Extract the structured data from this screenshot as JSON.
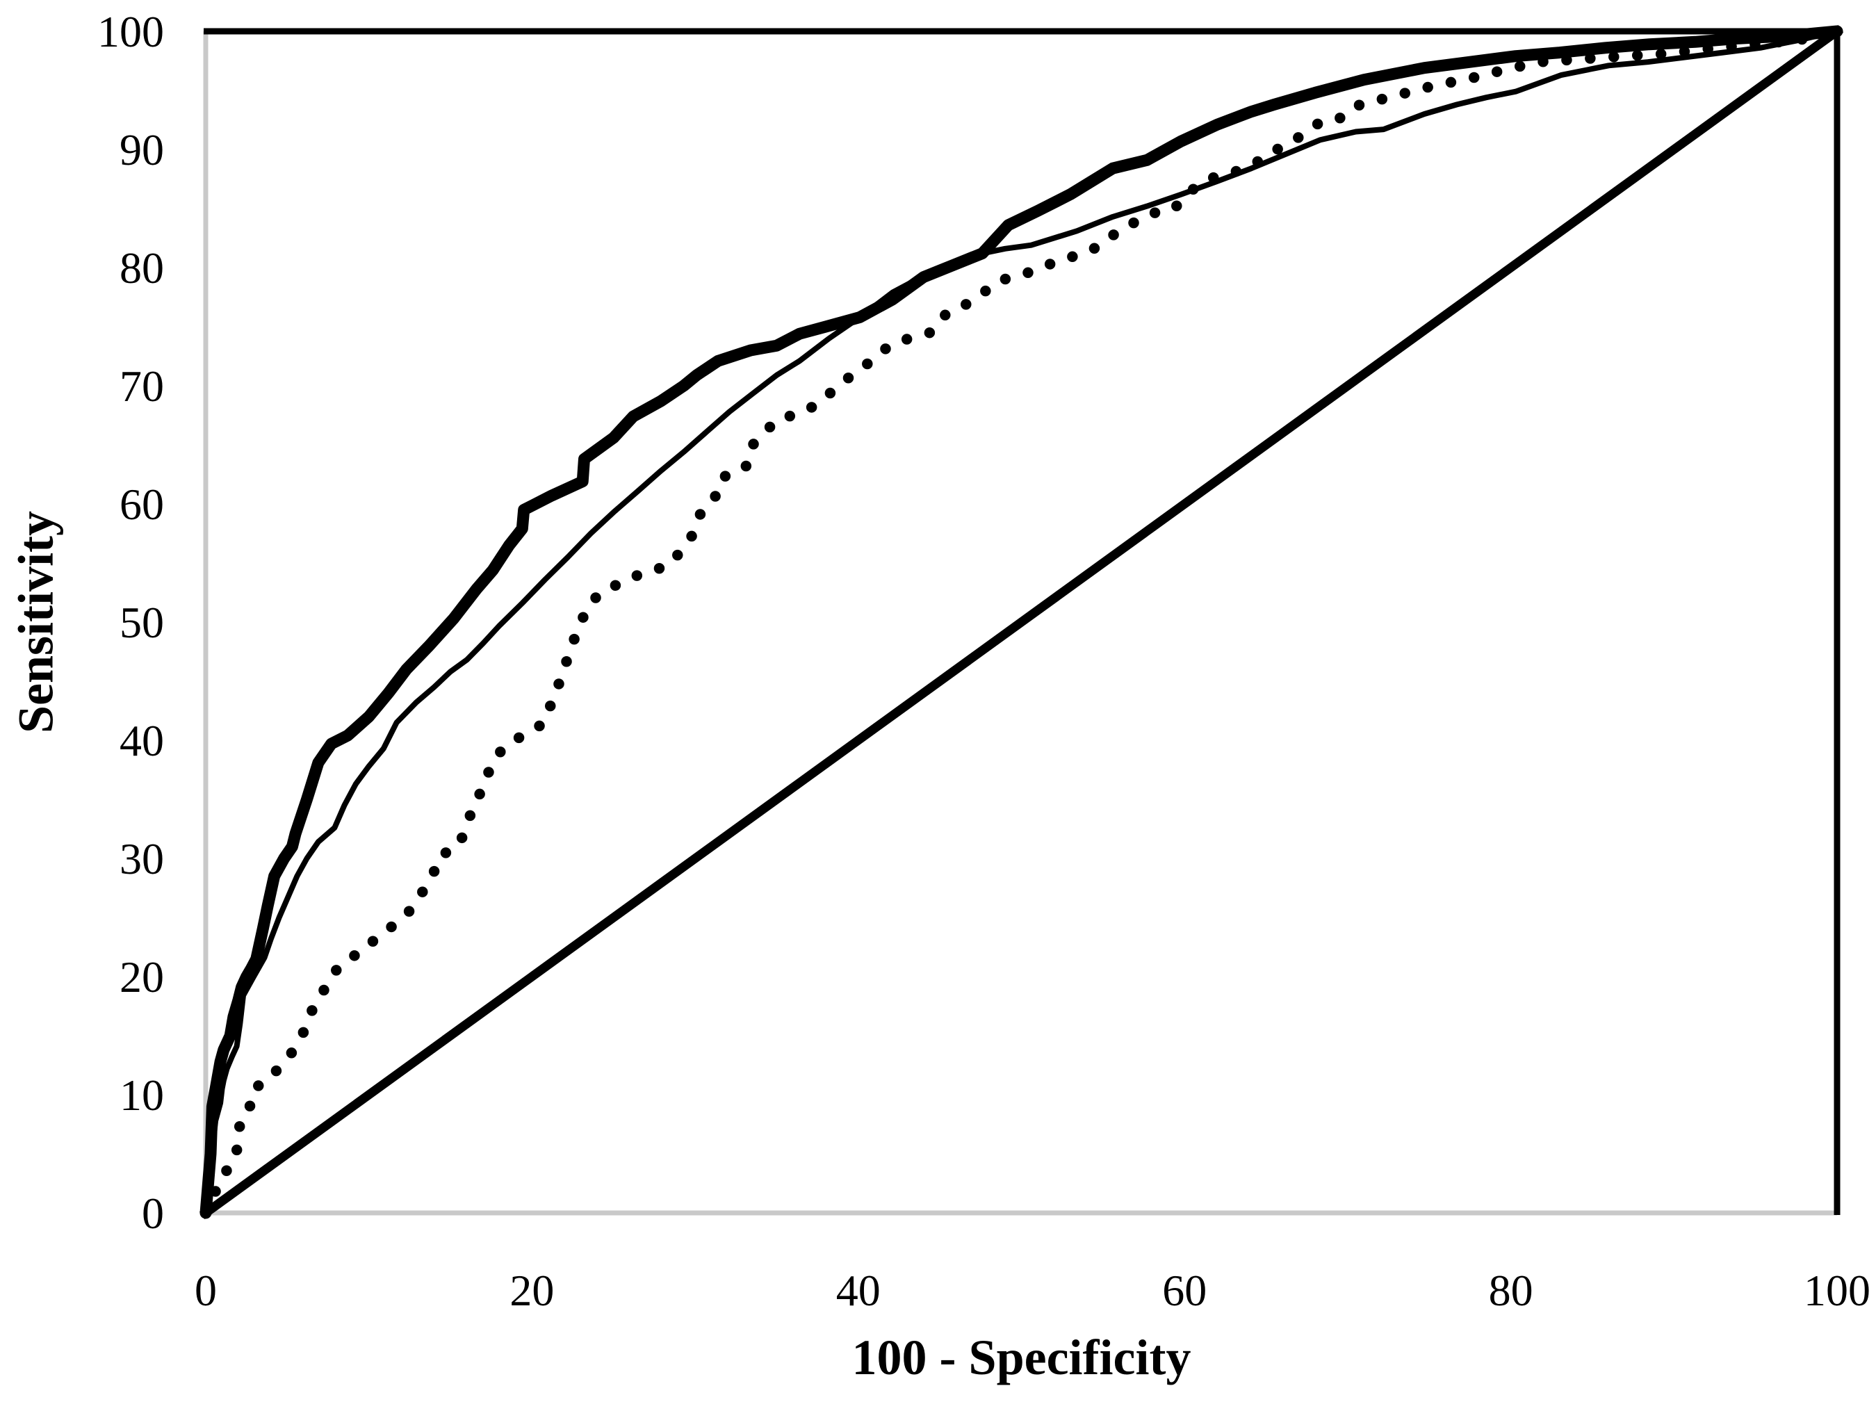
{
  "figure": {
    "background_color": "#ffffff",
    "axis_line_color": "#c9c9c9",
    "frame_line_color": "#000000",
    "curve_color": "#000000",
    "x_axis": {
      "title": "100 - Specificity",
      "ticks": [
        0,
        20,
        40,
        60,
        80,
        100
      ],
      "range": [
        0,
        100
      ]
    },
    "y_axis": {
      "title": "Sensitivity",
      "ticks": [
        0,
        10,
        20,
        30,
        40,
        50,
        60,
        70,
        80,
        90,
        100
      ],
      "range": [
        0,
        100
      ]
    }
  },
  "chart_data": {
    "type": "line",
    "title": "",
    "xlabel": "100 - Specificity",
    "ylabel": "Sensitivity",
    "xlim": [
      0,
      100
    ],
    "ylim": [
      0,
      100
    ],
    "grid": false,
    "legend_position": "none",
    "description": "ROC curves: three empirical ROC curves (thick solid, thin solid, dotted) plus a no-discrimination diagonal reference line",
    "series": [
      {
        "name": "roc-curve-thick-solid",
        "line_style": "solid-thick",
        "points": [
          [
            0,
            0
          ],
          [
            0.3,
            5
          ],
          [
            0.4,
            9
          ],
          [
            0.6,
            10.5
          ],
          [
            0.9,
            12.8
          ],
          [
            1.1,
            13.8
          ],
          [
            1.5,
            15
          ],
          [
            1.7,
            16.6
          ],
          [
            2.0,
            18
          ],
          [
            2.2,
            19.1
          ],
          [
            2.5,
            20
          ],
          [
            2.8,
            20.7
          ],
          [
            3.1,
            21.5
          ],
          [
            3.5,
            24
          ],
          [
            3.8,
            26
          ],
          [
            4.2,
            28.5
          ],
          [
            4.8,
            30
          ],
          [
            5.3,
            31
          ],
          [
            5.5,
            32.1
          ],
          [
            6.2,
            35
          ],
          [
            6.9,
            38.1
          ],
          [
            7.7,
            39.7
          ],
          [
            8.7,
            40.4
          ],
          [
            10,
            42
          ],
          [
            11.2,
            44
          ],
          [
            12.3,
            46
          ],
          [
            13.7,
            48
          ],
          [
            15.2,
            50.3
          ],
          [
            16.6,
            52.8
          ],
          [
            17.6,
            54.4
          ],
          [
            18.6,
            56.5
          ],
          [
            19.4,
            57.9
          ],
          [
            19.5,
            59.5
          ],
          [
            21.2,
            60.7
          ],
          [
            23.1,
            61.9
          ],
          [
            23.2,
            63.8
          ],
          [
            24.2,
            64.8
          ],
          [
            25,
            65.6
          ],
          [
            26.2,
            67.4
          ],
          [
            27.9,
            68.7
          ],
          [
            29.3,
            70
          ],
          [
            30.1,
            70.9
          ],
          [
            31.4,
            72.1
          ],
          [
            33.4,
            73
          ],
          [
            35,
            73.4
          ],
          [
            36.4,
            74.4
          ],
          [
            38,
            75
          ],
          [
            40.1,
            75.8
          ],
          [
            42.1,
            77.3
          ],
          [
            44,
            79.2
          ],
          [
            45.8,
            80.2
          ],
          [
            47.6,
            81.2
          ],
          [
            49.2,
            83.6
          ],
          [
            51,
            84.8
          ],
          [
            53,
            86.2
          ],
          [
            55.6,
            88.4
          ],
          [
            57.7,
            89.1
          ],
          [
            59.8,
            90.7
          ],
          [
            62,
            92.1
          ],
          [
            64.1,
            93.2
          ],
          [
            65.5,
            93.8
          ],
          [
            68,
            94.8
          ],
          [
            71,
            95.9
          ],
          [
            74.7,
            96.9
          ],
          [
            77.5,
            97.4
          ],
          [
            80.3,
            97.9
          ],
          [
            83,
            98.2
          ],
          [
            85.8,
            98.6
          ],
          [
            88.5,
            98.9
          ],
          [
            91.3,
            99.1
          ],
          [
            94,
            99.4
          ],
          [
            96.9,
            99.6
          ],
          [
            100,
            100
          ]
        ]
      },
      {
        "name": "roc-curve-thin-solid",
        "line_style": "solid-thin",
        "points": [
          [
            0,
            0
          ],
          [
            0.3,
            4
          ],
          [
            0.6,
            7.8
          ],
          [
            0.9,
            9.3
          ],
          [
            1.0,
            10.5
          ],
          [
            1.1,
            11.2
          ],
          [
            1.3,
            12.2
          ],
          [
            1.6,
            13.2
          ],
          [
            1.9,
            14.1
          ],
          [
            2.1,
            16
          ],
          [
            2.3,
            18.4
          ],
          [
            2.9,
            19.9
          ],
          [
            3.6,
            21.6
          ],
          [
            4.0,
            23.2
          ],
          [
            4.5,
            25
          ],
          [
            5.0,
            26.6
          ],
          [
            5.6,
            28.5
          ],
          [
            6.2,
            30
          ],
          [
            6.9,
            31.4
          ],
          [
            7.9,
            32.6
          ],
          [
            8.5,
            34.5
          ],
          [
            9.2,
            36.3
          ],
          [
            10,
            37.8
          ],
          [
            10.9,
            39.3
          ],
          [
            11.7,
            41.5
          ],
          [
            12.9,
            43.2
          ],
          [
            14,
            44.5
          ],
          [
            15,
            45.8
          ],
          [
            16,
            46.8
          ],
          [
            17,
            48.2
          ],
          [
            18,
            49.7
          ],
          [
            19.4,
            51.6
          ],
          [
            20.8,
            53.6
          ],
          [
            22.2,
            55.5
          ],
          [
            23.6,
            57.5
          ],
          [
            25,
            59.3
          ],
          [
            26.5,
            61.1
          ],
          [
            27.9,
            62.8
          ],
          [
            29.3,
            64.4
          ],
          [
            30.7,
            66.1
          ],
          [
            32.1,
            67.8
          ],
          [
            33.5,
            69.3
          ],
          [
            35,
            70.9
          ],
          [
            36.4,
            72.1
          ],
          [
            38.2,
            74
          ],
          [
            40.1,
            75.8
          ],
          [
            42.1,
            77.9
          ],
          [
            44,
            79.3
          ],
          [
            45.8,
            80.4
          ],
          [
            47.6,
            81.2
          ],
          [
            49,
            81.6
          ],
          [
            50.6,
            81.9
          ],
          [
            53.4,
            83.1
          ],
          [
            55.6,
            84.3
          ],
          [
            57.7,
            85.2
          ],
          [
            59.8,
            86.2
          ],
          [
            62,
            87.3
          ],
          [
            64.1,
            88.4
          ],
          [
            66.2,
            89.6
          ],
          [
            68.3,
            90.8
          ],
          [
            70.5,
            91.5
          ],
          [
            72.2,
            91.7
          ],
          [
            74.7,
            93
          ],
          [
            76.7,
            93.8
          ],
          [
            78.5,
            94.4
          ],
          [
            80.3,
            94.9
          ],
          [
            83.1,
            96.3
          ],
          [
            86,
            97.1
          ],
          [
            88.4,
            97.4
          ],
          [
            90.7,
            97.8
          ],
          [
            93,
            98.2
          ],
          [
            95.3,
            98.6
          ],
          [
            97.5,
            99.2
          ],
          [
            100,
            100
          ]
        ]
      },
      {
        "name": "roc-curve-dotted",
        "line_style": "dotted",
        "points": [
          [
            0,
            0
          ],
          [
            0.5,
            1.5
          ],
          [
            1,
            3.1
          ],
          [
            1.7,
            4.3
          ],
          [
            2,
            5.8
          ],
          [
            2.1,
            7.8
          ],
          [
            2.7,
            9
          ],
          [
            2.9,
            10.5
          ],
          [
            3.9,
            11.3
          ],
          [
            4.6,
            12.5
          ],
          [
            5.1,
            13.2
          ],
          [
            5.7,
            14.5
          ],
          [
            6.1,
            15.6
          ],
          [
            6.5,
            17.1
          ],
          [
            7,
            18.2
          ],
          [
            7.7,
            20.1
          ],
          [
            8.6,
            21.4
          ],
          [
            9.7,
            22.2
          ],
          [
            10.6,
            23.5
          ],
          [
            11.7,
            24.5
          ],
          [
            12.6,
            25.7
          ],
          [
            13.3,
            27.2
          ],
          [
            14,
            28.9
          ],
          [
            14.3,
            30.2
          ],
          [
            15.5,
            31
          ],
          [
            16,
            32.8
          ],
          [
            16.4,
            34.4
          ],
          [
            17,
            36
          ],
          [
            17.5,
            37.9
          ],
          [
            18.2,
            39.3
          ],
          [
            19.4,
            40.4
          ],
          [
            20.7,
            41.4
          ],
          [
            21.6,
            44.6
          ],
          [
            22.4,
            47.8
          ],
          [
            22.8,
            49.4
          ],
          [
            23.5,
            51.5
          ],
          [
            24.3,
            52.6
          ],
          [
            25.6,
            53.4
          ],
          [
            27,
            54.3
          ],
          [
            28.3,
            54.7
          ],
          [
            29.2,
            56.1
          ],
          [
            29.9,
            57.5
          ],
          [
            30.3,
            59.1
          ],
          [
            31.2,
            60.5
          ],
          [
            31.6,
            62.2
          ],
          [
            33.1,
            63.1
          ],
          [
            33.4,
            64.8
          ],
          [
            34.2,
            66
          ],
          [
            35.1,
            67.2
          ],
          [
            36.3,
            67.6
          ],
          [
            37.6,
            68.5
          ],
          [
            38.6,
            69.8
          ],
          [
            39.7,
            71
          ],
          [
            40.8,
            72.1
          ],
          [
            41.9,
            73.4
          ],
          [
            43.1,
            74
          ],
          [
            44.4,
            74.5
          ],
          [
            45.4,
            76.1
          ],
          [
            46.5,
            76.8
          ],
          [
            47.6,
            77.8
          ],
          [
            48.6,
            78.9
          ],
          [
            49.9,
            79.3
          ],
          [
            51.2,
            80
          ],
          [
            52.5,
            80.7
          ],
          [
            53.9,
            81.2
          ],
          [
            55.1,
            82.1
          ],
          [
            56,
            83.2
          ],
          [
            56.9,
            83.8
          ],
          [
            58,
            84.6
          ],
          [
            59.3,
            84.9
          ],
          [
            60.3,
            86.4
          ],
          [
            61.4,
            87.5
          ],
          [
            62.7,
            87.9
          ],
          [
            64,
            88.6
          ],
          [
            64.9,
            89.3
          ],
          [
            65.9,
            90.2
          ],
          [
            67.1,
            91.1
          ],
          [
            68.2,
            92.2
          ],
          [
            69.4,
            92.5
          ],
          [
            70.3,
            93.6
          ],
          [
            72.5,
            94.4
          ],
          [
            75.3,
            95.4
          ],
          [
            77.5,
            96
          ],
          [
            79.5,
            96.7
          ],
          [
            81.7,
            97.4
          ],
          [
            84.8,
            97.7
          ],
          [
            87,
            97.9
          ],
          [
            89.5,
            98.1
          ],
          [
            92,
            98.5
          ],
          [
            94.2,
            98.8
          ],
          [
            96.5,
            99.1
          ],
          [
            98.9,
            99.5
          ],
          [
            100,
            100
          ]
        ]
      },
      {
        "name": "reference-diagonal",
        "line_style": "solid-medium",
        "points": [
          [
            0,
            0
          ],
          [
            100,
            100
          ]
        ]
      }
    ]
  }
}
